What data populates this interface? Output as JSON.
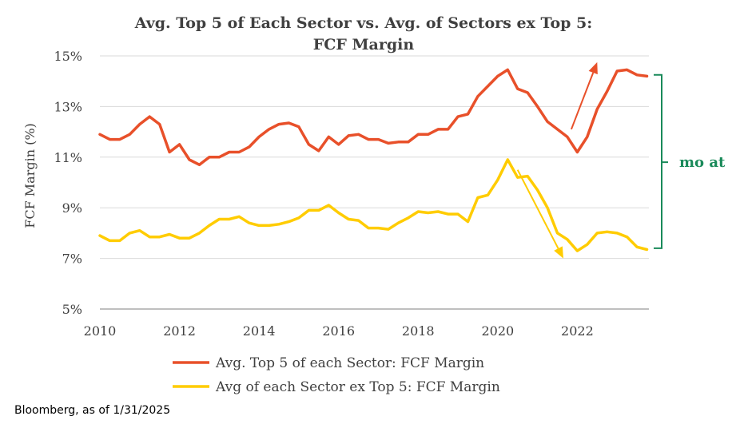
{
  "chart_data": {
    "type": "line",
    "title_line1": "Avg. Top 5 of Each Sector vs. Avg. of Sectors ex Top 5:",
    "title_line2": "FCF Margin",
    "ylabel": "FCF Margin (%)",
    "xlabel": "",
    "xlim": [
      2010,
      2023.8
    ],
    "ylim": [
      5,
      15
    ],
    "yticks": [
      5,
      7,
      9,
      11,
      13,
      15
    ],
    "ytick_labels": [
      "5%",
      "7%",
      "9%",
      "11%",
      "13%",
      "15%"
    ],
    "xticks": [
      2010,
      2012,
      2014,
      2016,
      2018,
      2020,
      2022
    ],
    "xtick_labels": [
      "2010",
      "2012",
      "2014",
      "2016",
      "2018",
      "2020",
      "2022"
    ],
    "grid": "horizontal",
    "legend_position": "bottom",
    "x": [
      2010.0,
      2010.25,
      2010.5,
      2010.75,
      2011.0,
      2011.25,
      2011.5,
      2011.75,
      2012.0,
      2012.25,
      2012.5,
      2012.75,
      2013.0,
      2013.25,
      2013.5,
      2013.75,
      2014.0,
      2014.25,
      2014.5,
      2014.75,
      2015.0,
      2015.25,
      2015.5,
      2015.75,
      2016.0,
      2016.25,
      2016.5,
      2016.75,
      2017.0,
      2017.25,
      2017.5,
      2017.75,
      2018.0,
      2018.25,
      2018.5,
      2018.75,
      2019.0,
      2019.25,
      2019.5,
      2019.75,
      2020.0,
      2020.25,
      2020.5,
      2020.75,
      2021.0,
      2021.25,
      2021.5,
      2021.75,
      2022.0,
      2022.25,
      2022.5,
      2022.75,
      2023.0,
      2023.25,
      2023.5,
      2023.75
    ],
    "series": [
      {
        "name": "Avg. Top 5 of each Sector: FCF Margin",
        "color": "#e8502a",
        "values": [
          11.9,
          11.7,
          11.7,
          11.9,
          12.3,
          12.6,
          12.3,
          11.2,
          11.5,
          10.9,
          10.7,
          11.0,
          11.0,
          11.2,
          11.2,
          11.4,
          11.8,
          12.1,
          12.3,
          12.35,
          12.2,
          11.5,
          11.25,
          11.8,
          11.5,
          11.85,
          11.9,
          11.7,
          11.7,
          11.55,
          11.6,
          11.6,
          11.9,
          11.9,
          12.1,
          12.1,
          12.6,
          12.7,
          13.4,
          13.8,
          14.2,
          14.45,
          13.7,
          13.55,
          13.0,
          12.4,
          12.1,
          11.8,
          11.2,
          11.8,
          12.9,
          13.6,
          14.4,
          14.45,
          14.25,
          14.2
        ]
      },
      {
        "name": "Avg of each Sector ex Top 5: FCF Margin",
        "color": "#ffcc00",
        "values": [
          7.9,
          7.7,
          7.7,
          8.0,
          8.1,
          7.85,
          7.85,
          7.95,
          7.8,
          7.8,
          8.0,
          8.3,
          8.55,
          8.55,
          8.65,
          8.4,
          8.3,
          8.3,
          8.35,
          8.45,
          8.6,
          8.9,
          8.9,
          9.1,
          8.8,
          8.55,
          8.5,
          8.2,
          8.2,
          8.15,
          8.4,
          8.6,
          8.85,
          8.8,
          8.85,
          8.75,
          8.75,
          8.45,
          9.4,
          9.5,
          10.1,
          10.9,
          10.2,
          10.25,
          9.7,
          9.0,
          8.0,
          7.75,
          7.3,
          7.55,
          8.0,
          8.05,
          8.0,
          7.85,
          7.45,
          7.35
        ]
      }
    ],
    "annotations": {
      "moat_label": "mo at",
      "red_arrow": {
        "from": [
          2021.85,
          12.1
        ],
        "to": [
          2022.5,
          14.75
        ]
      },
      "yellow_arrow": {
        "from": [
          2020.5,
          10.5
        ],
        "to": [
          2021.65,
          7.0
        ]
      },
      "bracket": {
        "y_top": 14.25,
        "y_bottom": 7.4,
        "label_y": 10.8
      }
    }
  },
  "source": "Bloomberg, as of 1/31/2025"
}
